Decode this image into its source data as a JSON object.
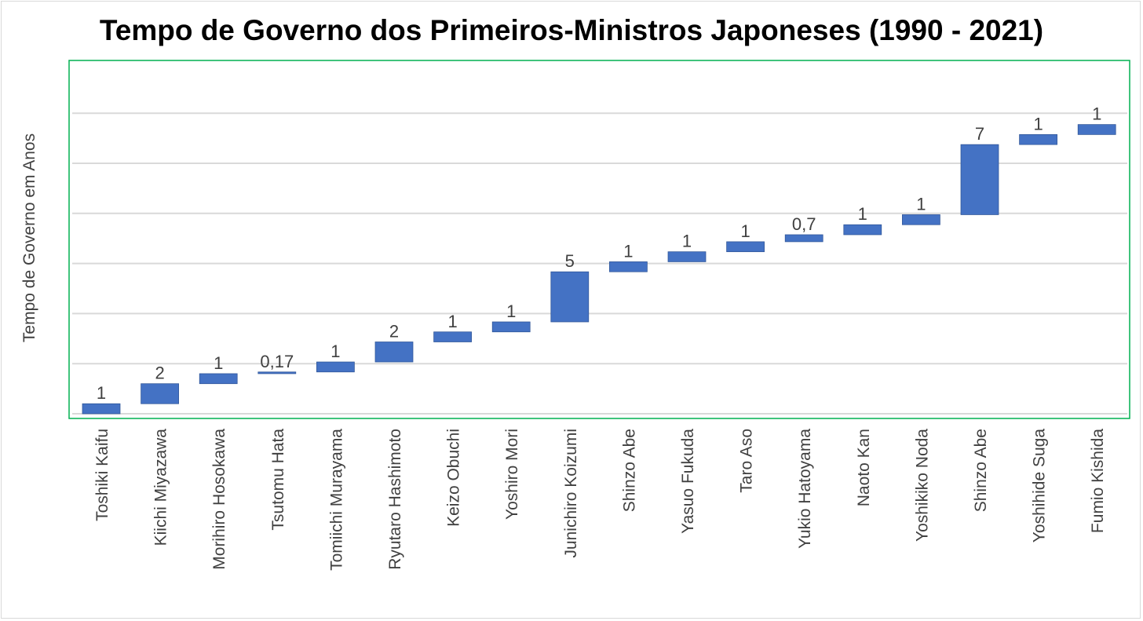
{
  "chart_data": {
    "type": "bar",
    "subtype": "waterfall",
    "title": "Tempo de Governo dos Primeiros-Ministros Japoneses (1990 - 2021)",
    "xlabel": "",
    "ylabel": "Tempo de Governo em Anos",
    "ylim": [
      0,
      35
    ],
    "y_gridlines": [
      5,
      10,
      15,
      20,
      25,
      30
    ],
    "y_tick_labels_visible": false,
    "categories": [
      "Toshiki Kaifu",
      "Kiichi Miyazawa",
      "Morihiro Hosokawa",
      "Tsutomu Hata",
      "Tomiichi Murayama",
      "Ryutaro Hashimoto",
      "Keizo Obuchi",
      "Yoshiro Mori",
      "Junichiro Koizumi",
      "Shinzo Abe",
      "Yasuo Fukuda",
      "Taro Aso",
      "Yukio Hatoyama",
      "Naoto Kan",
      "Yoshikiko Noda",
      "Shinzo Abe",
      "Yoshihide Suga",
      "Fumio Kishida"
    ],
    "values": [
      1,
      2,
      1,
      0.17,
      1,
      2,
      1,
      1,
      5,
      1,
      1,
      1,
      0.7,
      1,
      1,
      7,
      1,
      1
    ],
    "data_labels": [
      "1",
      "2",
      "1",
      "0,17",
      "1",
      "2",
      "1",
      "1",
      "5",
      "1",
      "1",
      "1",
      "0,7",
      "1",
      "1",
      "7",
      "1",
      "1"
    ],
    "bar_color": "#4472C4",
    "plot_border_color": "#00B050",
    "grid": true
  }
}
